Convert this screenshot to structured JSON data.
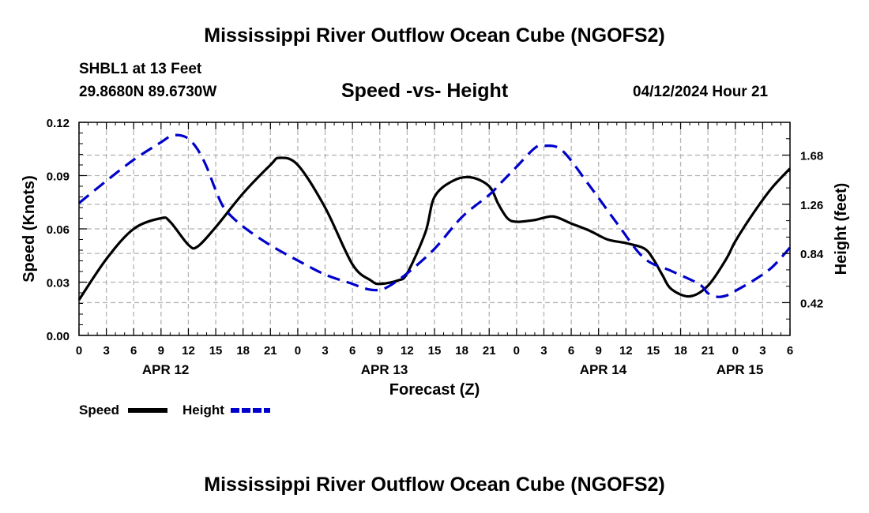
{
  "header": {
    "title": "Mississippi River Outflow Ocean Cube (NGOFS2)",
    "station": "SHBL1 at 13 Feet",
    "coords": "29.8680N  89.6730W",
    "subtitle": "Speed -vs- Height",
    "datetime": "04/12/2024 Hour 21"
  },
  "footer": {
    "title": "Mississippi River Outflow Ocean Cube (NGOFS2)"
  },
  "chart_data": {
    "type": "line",
    "title": "Speed -vs- Height",
    "xlabel": "Forecast (Z)",
    "ylabel": "Speed (Knots)",
    "y2label": "Height (feet)",
    "xlim": [
      0,
      78
    ],
    "ylim": [
      0,
      0.12
    ],
    "y2lim": [
      0.14,
      1.96
    ],
    "x_tick_labels": [
      "0",
      "3",
      "6",
      "9",
      "12",
      "15",
      "18",
      "21",
      "0",
      "3",
      "6",
      "9",
      "12",
      "15",
      "18",
      "21",
      "0",
      "3",
      "6",
      "9",
      "12",
      "15",
      "18",
      "21",
      "0",
      "3",
      "6"
    ],
    "date_labels": [
      {
        "label": "APR 12",
        "x": 9.5
      },
      {
        "label": "APR 13",
        "x": 33.5
      },
      {
        "label": "APR 14",
        "x": 57.5
      },
      {
        "label": "APR 15",
        "x": 72.5
      }
    ],
    "y_ticks": [
      "0.00",
      "0.03",
      "0.06",
      "0.09",
      "0.12"
    ],
    "y_tick_values": [
      0,
      0.03,
      0.06,
      0.09,
      0.12
    ],
    "y2_ticks": [
      "0.42",
      "0.84",
      "1.26",
      "1.68"
    ],
    "y2_tick_values": [
      0.42,
      0.84,
      1.26,
      1.68
    ],
    "grid": true,
    "legend": {
      "position": "bottom-left"
    },
    "series": [
      {
        "name": "Speed",
        "axis": "left",
        "color": "#000000",
        "dash": "solid",
        "x": [
          0,
          3,
          6,
          9,
          10,
          12,
          13,
          15,
          18,
          21,
          22,
          24,
          27,
          30,
          32,
          33,
          35,
          36,
          38,
          39,
          41,
          43,
          45,
          46,
          47,
          48,
          50,
          52,
          54,
          56,
          58,
          60,
          62,
          63,
          64,
          65,
          67,
          69,
          71,
          72,
          74,
          76,
          78
        ],
        "values": [
          0.02,
          0.043,
          0.06,
          0.066,
          0.064,
          0.051,
          0.05,
          0.061,
          0.08,
          0.096,
          0.1,
          0.096,
          0.072,
          0.04,
          0.031,
          0.029,
          0.031,
          0.035,
          0.058,
          0.078,
          0.087,
          0.089,
          0.084,
          0.074,
          0.066,
          0.064,
          0.065,
          0.067,
          0.063,
          0.059,
          0.054,
          0.052,
          0.049,
          0.043,
          0.034,
          0.026,
          0.022,
          0.028,
          0.043,
          0.053,
          0.069,
          0.083,
          0.094
        ]
      },
      {
        "name": "Height",
        "axis": "right",
        "color": "#0000cc",
        "dash": "dashed",
        "x": [
          0,
          3,
          6,
          9,
          10,
          11,
          12,
          13,
          14,
          15,
          16,
          18,
          21,
          24,
          27,
          30,
          31,
          32,
          33,
          34,
          36,
          39,
          42,
          45,
          46,
          47,
          48,
          50,
          51,
          53,
          56,
          59,
          62,
          65,
          68,
          69,
          70,
          71,
          72,
          74,
          76,
          78
        ],
        "values": [
          1.27,
          1.46,
          1.64,
          1.79,
          1.84,
          1.85,
          1.82,
          1.73,
          1.58,
          1.38,
          1.22,
          1.07,
          0.91,
          0.78,
          0.66,
          0.58,
          0.55,
          0.53,
          0.53,
          0.56,
          0.67,
          0.88,
          1.15,
          1.34,
          1.42,
          1.5,
          1.58,
          1.74,
          1.76,
          1.72,
          1.42,
          1.1,
          0.8,
          0.69,
          0.58,
          0.5,
          0.47,
          0.48,
          0.52,
          0.61,
          0.72,
          0.89
        ]
      }
    ]
  }
}
